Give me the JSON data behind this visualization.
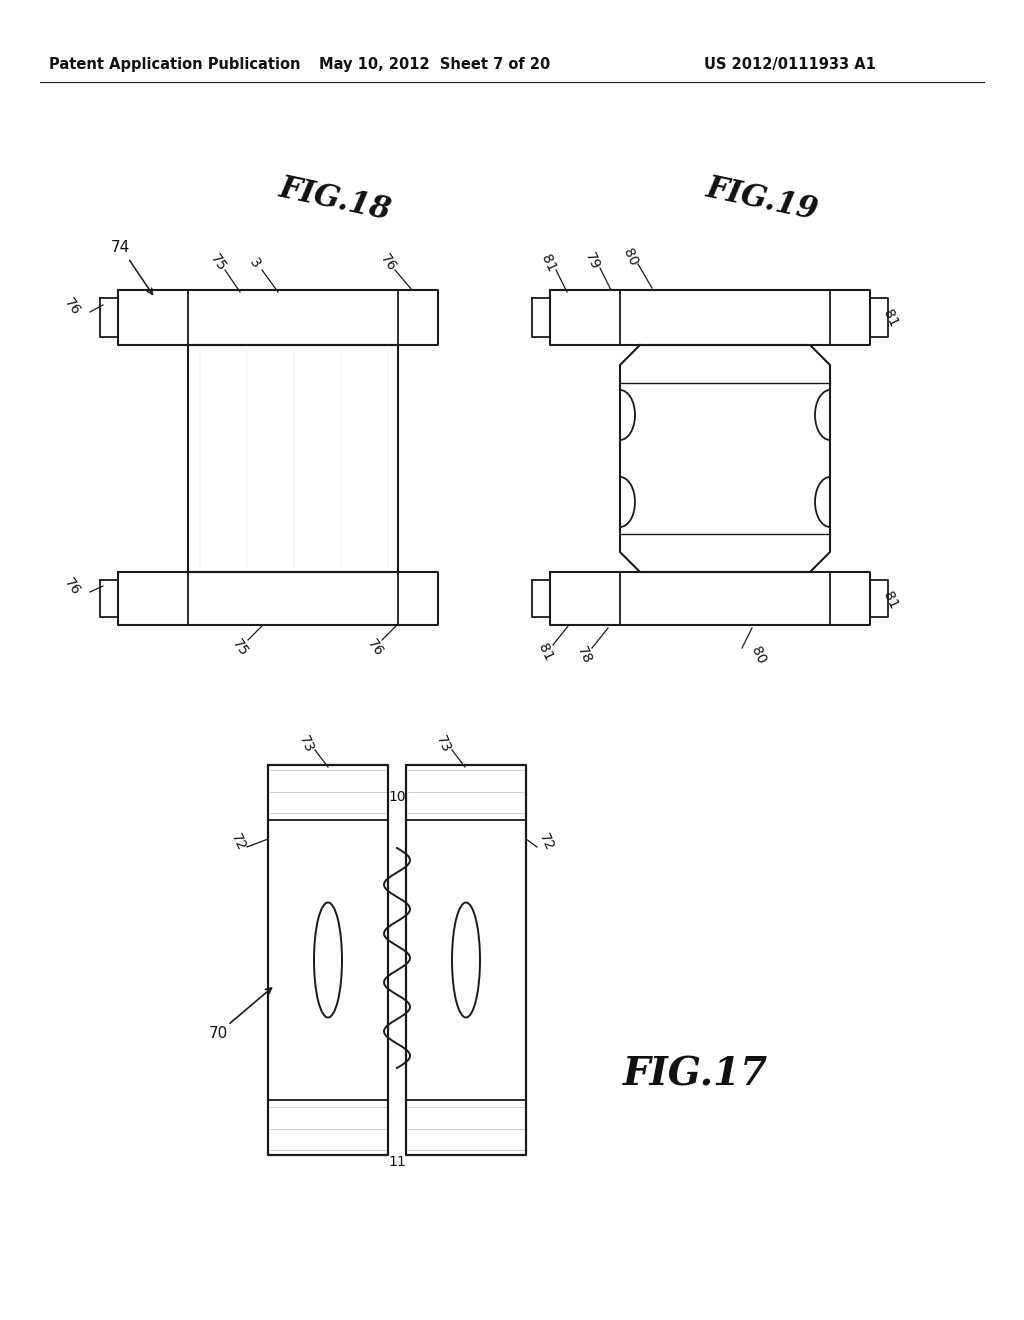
{
  "background_color": "#ffffff",
  "header_left": "Patent Application Publication",
  "header_mid": "May 10, 2012  Sheet 7 of 20",
  "header_right": "US 2012/0111933 A1",
  "fig18_title": "FIG.18",
  "fig19_title": "FIG.19",
  "fig17_title": "FIG.17",
  "line_color": "#1a1a1a",
  "text_color": "#111111"
}
